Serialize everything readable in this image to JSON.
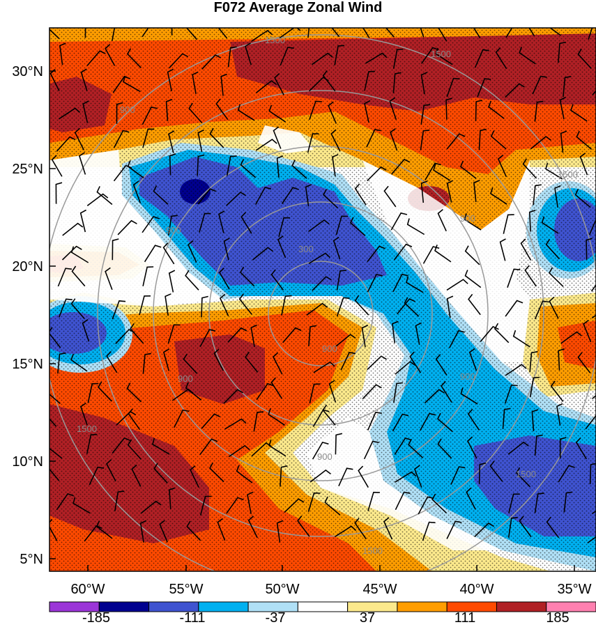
{
  "title": "F072 Average Zonal Wind",
  "latitude_labels": [
    "30°N",
    "25°N",
    "20°N",
    "15°N",
    "10°N",
    "5°N"
  ],
  "longitude_labels": [
    "60°W",
    "55°W",
    "50°W",
    "45°W",
    "40°W",
    "35°W"
  ],
  "colorbar": {
    "colors": [
      "#9b35d8",
      "#00008f",
      "#3f53d0",
      "#00b0f0",
      "#b0e0f6",
      "#ffffff",
      "#fce98c",
      "#ff9d00",
      "#ff4a00",
      "#b02025",
      "#ff80b0"
    ],
    "labels": [
      "-185",
      "-111",
      "-37",
      "37",
      "111",
      "185"
    ]
  },
  "range_rings": {
    "color": "#999999",
    "labels": [
      "1500",
      "1500",
      "900",
      "900",
      "300",
      "900",
      "900",
      "900",
      "1500",
      "1500",
      "900",
      "900",
      "1500",
      "1500"
    ]
  }
}
